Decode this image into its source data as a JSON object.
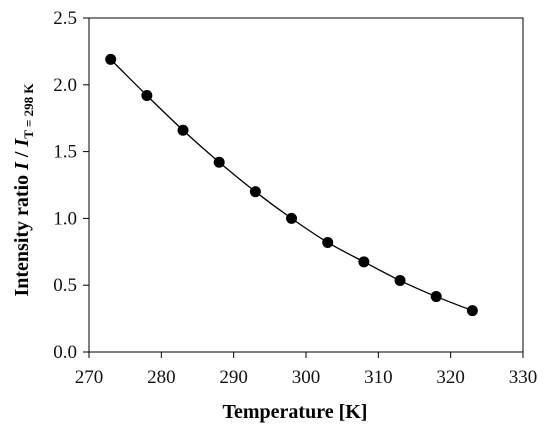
{
  "chart_data": {
    "type": "scatter",
    "title": "",
    "xlabel": "Temperature [K]",
    "ylabel": {
      "prefix": "Intensity ratio ",
      "I1": "I",
      "slash": " / ",
      "I2": "I",
      "sub": "T = 298 K"
    },
    "xlim": [
      270,
      330
    ],
    "ylim": [
      0,
      2.5
    ],
    "xticks": [
      "270",
      "280",
      "290",
      "300",
      "310",
      "320",
      "330"
    ],
    "yticks": [
      "0.0",
      "0.5",
      "1.0",
      "1.5",
      "2.0",
      "2.5"
    ],
    "grid": false,
    "legend": "none",
    "series": [
      {
        "x": [
          273,
          278,
          283,
          288,
          293,
          298,
          303,
          308,
          313,
          318,
          323
        ],
        "y": [
          2.19,
          1.92,
          1.66,
          1.42,
          1.2,
          1.0,
          0.82,
          0.675,
          0.535,
          0.415,
          0.31
        ],
        "marker_color": "#000000",
        "trendline": true
      }
    ]
  }
}
